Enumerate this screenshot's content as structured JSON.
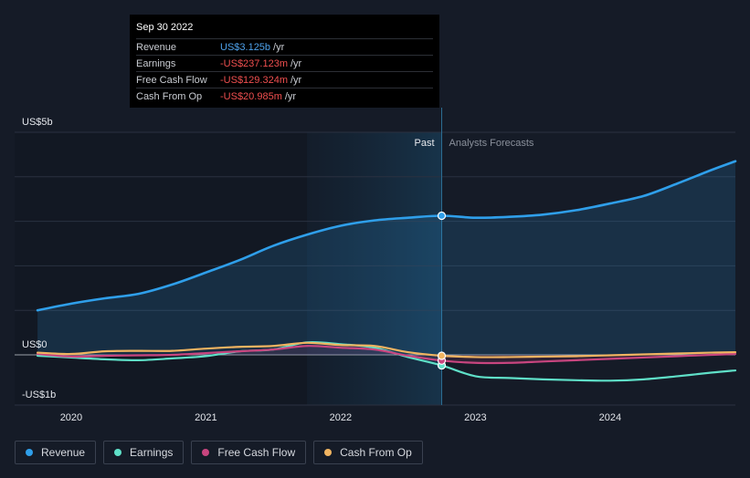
{
  "tooltip": {
    "date": "Sep 30 2022",
    "rows": [
      {
        "label": "Revenue",
        "value": "US$3.125b",
        "unit": "/yr",
        "color": "#4ea1ea"
      },
      {
        "label": "Earnings",
        "value": "-US$237.123m",
        "unit": "/yr",
        "color": "#ef4f4f"
      },
      {
        "label": "Free Cash Flow",
        "value": "-US$129.324m",
        "unit": "/yr",
        "color": "#ef4f4f"
      },
      {
        "label": "Cash From Op",
        "value": "-US$20.985m",
        "unit": "/yr",
        "color": "#ef4f4f"
      }
    ]
  },
  "legend": [
    {
      "label": "Revenue",
      "color": "#2f9fea"
    },
    {
      "label": "Earnings",
      "color": "#5fe0c8"
    },
    {
      "label": "Free Cash Flow",
      "color": "#c8457f"
    },
    {
      "label": "Cash From Op",
      "color": "#f0b461"
    }
  ],
  "chart_data": {
    "type": "line",
    "y_labels": [
      "US$5b",
      "US$0",
      "-US$1b"
    ],
    "ylim": [
      -1,
      5
    ],
    "x_ticks": [
      2020,
      2021,
      2022,
      2023,
      2024
    ],
    "xlim": [
      2019.58,
      2024.93
    ],
    "past_label": "Past",
    "forecast_label": "Analysts Forecasts",
    "past_band": [
      2021.75,
      2022.75
    ],
    "divider_x": 2022.75,
    "highlight_x": 2022.75,
    "series": [
      {
        "name": "Revenue",
        "color": "#2f9fea",
        "fill": true,
        "points": [
          [
            2019.75,
            1.0
          ],
          [
            2020.0,
            1.15
          ],
          [
            2020.25,
            1.27
          ],
          [
            2020.5,
            1.37
          ],
          [
            2020.75,
            1.58
          ],
          [
            2021.0,
            1.85
          ],
          [
            2021.25,
            2.13
          ],
          [
            2021.5,
            2.45
          ],
          [
            2021.75,
            2.7
          ],
          [
            2022.0,
            2.9
          ],
          [
            2022.25,
            3.02
          ],
          [
            2022.5,
            3.08
          ],
          [
            2022.75,
            3.125
          ],
          [
            2023.0,
            3.08
          ],
          [
            2023.25,
            3.1
          ],
          [
            2023.5,
            3.15
          ],
          [
            2023.75,
            3.25
          ],
          [
            2024.0,
            3.4
          ],
          [
            2024.25,
            3.57
          ],
          [
            2024.5,
            3.85
          ],
          [
            2024.75,
            4.15
          ],
          [
            2024.93,
            4.35
          ]
        ]
      },
      {
        "name": "Earnings",
        "color": "#5fe0c8",
        "fill": false,
        "points": [
          [
            2019.75,
            -0.02
          ],
          [
            2020.0,
            -0.06
          ],
          [
            2020.25,
            -0.1
          ],
          [
            2020.5,
            -0.12
          ],
          [
            2020.75,
            -0.08
          ],
          [
            2021.0,
            -0.03
          ],
          [
            2021.25,
            0.08
          ],
          [
            2021.5,
            0.12
          ],
          [
            2021.75,
            0.28
          ],
          [
            2022.0,
            0.24
          ],
          [
            2022.25,
            0.16
          ],
          [
            2022.5,
            -0.05
          ],
          [
            2022.75,
            -0.237
          ],
          [
            2023.0,
            -0.48
          ],
          [
            2023.25,
            -0.52
          ],
          [
            2023.5,
            -0.55
          ],
          [
            2023.75,
            -0.57
          ],
          [
            2024.0,
            -0.58
          ],
          [
            2024.25,
            -0.55
          ],
          [
            2024.5,
            -0.48
          ],
          [
            2024.75,
            -0.4
          ],
          [
            2024.93,
            -0.35
          ]
        ]
      },
      {
        "name": "Free Cash Flow",
        "color": "#c8457f",
        "fill": true,
        "points": [
          [
            2019.75,
            0.02
          ],
          [
            2020.0,
            -0.04
          ],
          [
            2020.25,
            -0.02
          ],
          [
            2020.5,
            -0.01
          ],
          [
            2020.75,
            0.0
          ],
          [
            2021.0,
            0.04
          ],
          [
            2021.25,
            0.08
          ],
          [
            2021.5,
            0.12
          ],
          [
            2021.75,
            0.2
          ],
          [
            2022.0,
            0.16
          ],
          [
            2022.25,
            0.12
          ],
          [
            2022.5,
            -0.02
          ],
          [
            2022.75,
            -0.129
          ],
          [
            2023.0,
            -0.18
          ],
          [
            2023.25,
            -0.18
          ],
          [
            2023.5,
            -0.15
          ],
          [
            2023.75,
            -0.12
          ],
          [
            2024.0,
            -0.09
          ],
          [
            2024.25,
            -0.06
          ],
          [
            2024.5,
            -0.03
          ],
          [
            2024.75,
            0.0
          ],
          [
            2024.93,
            0.02
          ]
        ]
      },
      {
        "name": "Cash From Op",
        "color": "#f0b461",
        "fill": false,
        "points": [
          [
            2019.75,
            0.05
          ],
          [
            2020.0,
            0.02
          ],
          [
            2020.25,
            0.08
          ],
          [
            2020.5,
            0.09
          ],
          [
            2020.75,
            0.09
          ],
          [
            2021.0,
            0.14
          ],
          [
            2021.25,
            0.18
          ],
          [
            2021.5,
            0.2
          ],
          [
            2021.75,
            0.27
          ],
          [
            2022.0,
            0.22
          ],
          [
            2022.25,
            0.2
          ],
          [
            2022.5,
            0.06
          ],
          [
            2022.75,
            -0.021
          ],
          [
            2023.0,
            -0.05
          ],
          [
            2023.25,
            -0.05
          ],
          [
            2023.5,
            -0.04
          ],
          [
            2023.75,
            -0.03
          ],
          [
            2024.0,
            -0.01
          ],
          [
            2024.25,
            0.01
          ],
          [
            2024.5,
            0.03
          ],
          [
            2024.75,
            0.05
          ],
          [
            2024.93,
            0.06
          ]
        ]
      }
    ]
  }
}
